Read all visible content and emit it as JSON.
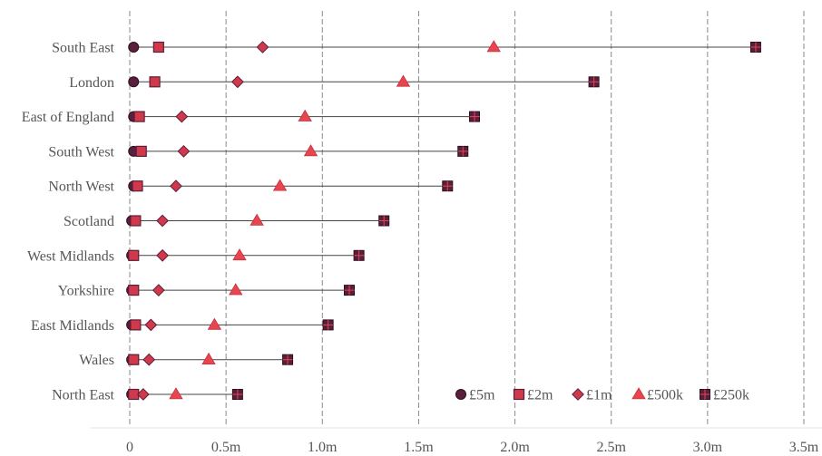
{
  "chart_data": {
    "type": "dot-range",
    "title": "",
    "xlabel": "",
    "ylabel": "",
    "xlim": [
      0,
      3.5
    ],
    "grid": "vertical dashed",
    "legend_position": "bottom-right",
    "x_ticks": [
      {
        "value": 0,
        "label": "0"
      },
      {
        "value": 0.5,
        "label": "0.5m"
      },
      {
        "value": 1.0,
        "label": "1.0m"
      },
      {
        "value": 1.5,
        "label": "1.5m"
      },
      {
        "value": 2.0,
        "label": "2.0m"
      },
      {
        "value": 2.5,
        "label": "2.5m"
      },
      {
        "value": 3.0,
        "label": "3.0m"
      },
      {
        "value": 3.5,
        "label": "3.5m"
      }
    ],
    "categories": [
      "South East",
      "London",
      "East of England",
      "South West",
      "North West",
      "Scotland",
      "West Midlands",
      "Yorkshire",
      "East Midlands",
      "Wales",
      "North East"
    ],
    "series": [
      {
        "name": "£5m",
        "marker": "circle",
        "color": "#5a1f3c",
        "values": [
          0.02,
          0.02,
          0.02,
          0.02,
          0.02,
          0.01,
          0.01,
          0.01,
          0.01,
          0.01,
          0.01
        ]
      },
      {
        "name": "£2m",
        "marker": "square",
        "color": "#d1394b",
        "values": [
          0.15,
          0.13,
          0.05,
          0.06,
          0.04,
          0.03,
          0.02,
          0.02,
          0.03,
          0.02,
          0.02
        ]
      },
      {
        "name": "£1m",
        "marker": "diamond",
        "color": "#d1394b",
        "values": [
          0.69,
          0.56,
          0.27,
          0.28,
          0.24,
          0.17,
          0.17,
          0.15,
          0.11,
          0.1,
          0.07
        ]
      },
      {
        "name": "£500k",
        "marker": "triangle",
        "color": "#e8464e",
        "values": [
          1.89,
          1.42,
          0.91,
          0.94,
          0.78,
          0.66,
          0.57,
          0.55,
          0.44,
          0.41,
          0.24
        ]
      },
      {
        "name": "£250k",
        "marker": "square-cross",
        "color": "#5a1f3c",
        "values": [
          3.25,
          2.41,
          1.79,
          1.73,
          1.65,
          1.32,
          1.19,
          1.14,
          1.03,
          0.82,
          0.56
        ]
      }
    ]
  }
}
